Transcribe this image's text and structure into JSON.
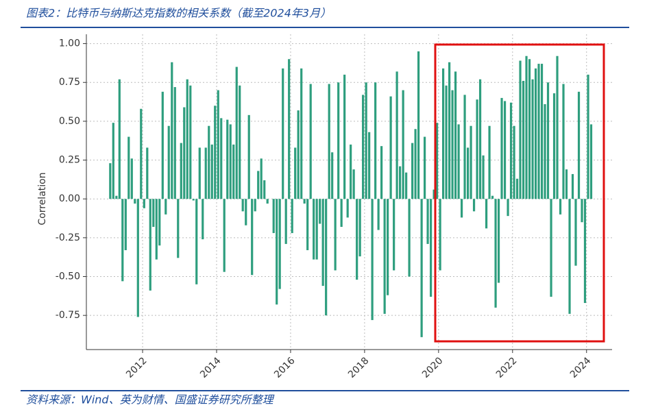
{
  "chart_data": {
    "type": "bar",
    "title": "图表2：比特币与纳斯达克指数的相关系数（截至2024年3月）",
    "source": "资料来源：Wind、英为财情、国盛证券研究所整理",
    "y_label": "Correlation",
    "color": "#2e9e7e",
    "grid": true,
    "xlim": [
      2010.48,
      2024.69
    ],
    "xticks": [
      2012,
      2014,
      2016,
      2018,
      2020,
      2022,
      2024
    ],
    "ylim": [
      -0.97,
      1.06
    ],
    "yticks": [
      {
        "value": 1,
        "label": "1.00"
      },
      0.75,
      {
        "value": 0.5,
        "label": "0.50"
      },
      0.25,
      {
        "value": 0,
        "label": "0.00"
      },
      -0.25,
      {
        "value": -0.5,
        "label": "-0.50"
      },
      -0.75
    ],
    "x": [
      2011.125,
      2011.208,
      2011.292,
      2011.375,
      2011.458,
      2011.542,
      2011.625,
      2011.708,
      2011.792,
      2011.875,
      2011.958,
      2012.042,
      2012.125,
      2012.208,
      2012.292,
      2012.375,
      2012.458,
      2012.542,
      2012.625,
      2012.708,
      2012.792,
      2012.875,
      2012.958,
      2013.042,
      2013.125,
      2013.208,
      2013.292,
      2013.375,
      2013.458,
      2013.542,
      2013.625,
      2013.708,
      2013.792,
      2013.875,
      2013.958,
      2014.042,
      2014.125,
      2014.208,
      2014.292,
      2014.375,
      2014.458,
      2014.542,
      2014.625,
      2014.708,
      2014.792,
      2014.875,
      2014.958,
      2015.042,
      2015.125,
      2015.208,
      2015.292,
      2015.375,
      2015.458,
      2015.542,
      2015.625,
      2015.708,
      2015.792,
      2015.875,
      2015.958,
      2016.042,
      2016.125,
      2016.208,
      2016.292,
      2016.375,
      2016.458,
      2016.542,
      2016.625,
      2016.708,
      2016.792,
      2016.875,
      2016.958,
      2017.042,
      2017.125,
      2017.208,
      2017.292,
      2017.375,
      2017.458,
      2017.542,
      2017.625,
      2017.708,
      2017.792,
      2017.875,
      2017.958,
      2018.042,
      2018.125,
      2018.208,
      2018.292,
      2018.375,
      2018.458,
      2018.542,
      2018.625,
      2018.708,
      2018.792,
      2018.875,
      2018.958,
      2019.042,
      2019.125,
      2019.208,
      2019.292,
      2019.375,
      2019.458,
      2019.542,
      2019.625,
      2019.708,
      2019.792,
      2019.875,
      2019.958,
      2020.042,
      2020.125,
      2020.208,
      2020.292,
      2020.375,
      2020.458,
      2020.542,
      2020.625,
      2020.708,
      2020.792,
      2020.875,
      2020.958,
      2021.042,
      2021.125,
      2021.208,
      2021.292,
      2021.375,
      2021.458,
      2021.542,
      2021.625,
      2021.708,
      2021.792,
      2021.875,
      2021.958,
      2022.042,
      2022.125,
      2022.208,
      2022.292,
      2022.375,
      2022.458,
      2022.542,
      2022.625,
      2022.708,
      2022.792,
      2022.875,
      2022.958,
      2023.042,
      2023.125,
      2023.208,
      2023.292,
      2023.375,
      2023.458,
      2023.542,
      2023.625,
      2023.708,
      2023.792,
      2023.875,
      2023.958,
      2024.042,
      2024.125
    ],
    "values": [
      0.23,
      0.49,
      0.02,
      0.77,
      -0.53,
      -0.33,
      0.4,
      0.26,
      -0.03,
      -0.76,
      0.58,
      -0.06,
      0.33,
      -0.59,
      -0.18,
      -0.39,
      -0.3,
      0.69,
      -0.1,
      0.47,
      0.88,
      0.72,
      -0.38,
      0.36,
      0.59,
      0.77,
      0.73,
      -0.01,
      -0.55,
      0.33,
      -0.26,
      0.33,
      0.47,
      0.35,
      0.6,
      0.7,
      0.52,
      -0.47,
      0.51,
      0.48,
      0.35,
      0.85,
      0.73,
      -0.08,
      -0.17,
      0.54,
      -0.49,
      -0.08,
      0.18,
      0.26,
      0.12,
      -0.03,
      0,
      -0.22,
      -0.68,
      -0.58,
      0.84,
      -0.29,
      0.9,
      -0.22,
      0.33,
      0.57,
      0.84,
      -0.03,
      -0.33,
      0.74,
      -0.39,
      -0.39,
      -0.16,
      -0.56,
      -0.75,
      0.74,
      0.3,
      -0.46,
      0.75,
      -0.18,
      0.8,
      -0.12,
      0.35,
      0.19,
      -0.52,
      -0.37,
      0.67,
      0.75,
      0.43,
      -0.78,
      0.75,
      -0.2,
      0.34,
      -0.74,
      -0.62,
      0.66,
      -0.46,
      0.82,
      0.21,
      0.7,
      0.17,
      -0.5,
      0.36,
      0.45,
      0.95,
      -0.89,
      0.4,
      -0.29,
      -0.63,
      0.06,
      0.49,
      -0.46,
      0.84,
      0.73,
      0.88,
      0.7,
      0.82,
      0.48,
      -0.12,
      0.67,
      0.33,
      0.47,
      -0.08,
      0.64,
      0.77,
      0.28,
      -0.19,
      0.47,
      0.02,
      -0.7,
      -0.54,
      0.65,
      0.63,
      -0.11,
      0.62,
      0.47,
      0.13,
      0.89,
      0.76,
      0.92,
      0.9,
      0.77,
      0.84,
      0.87,
      0.87,
      0.61,
      0.75,
      -0.63,
      0.68,
      0.92,
      -0.1,
      0.74,
      0.19,
      -0.74,
      0.16,
      -0.43,
      0.69,
      -0.15,
      -0.67,
      0.8,
      0.48
    ]
  }
}
